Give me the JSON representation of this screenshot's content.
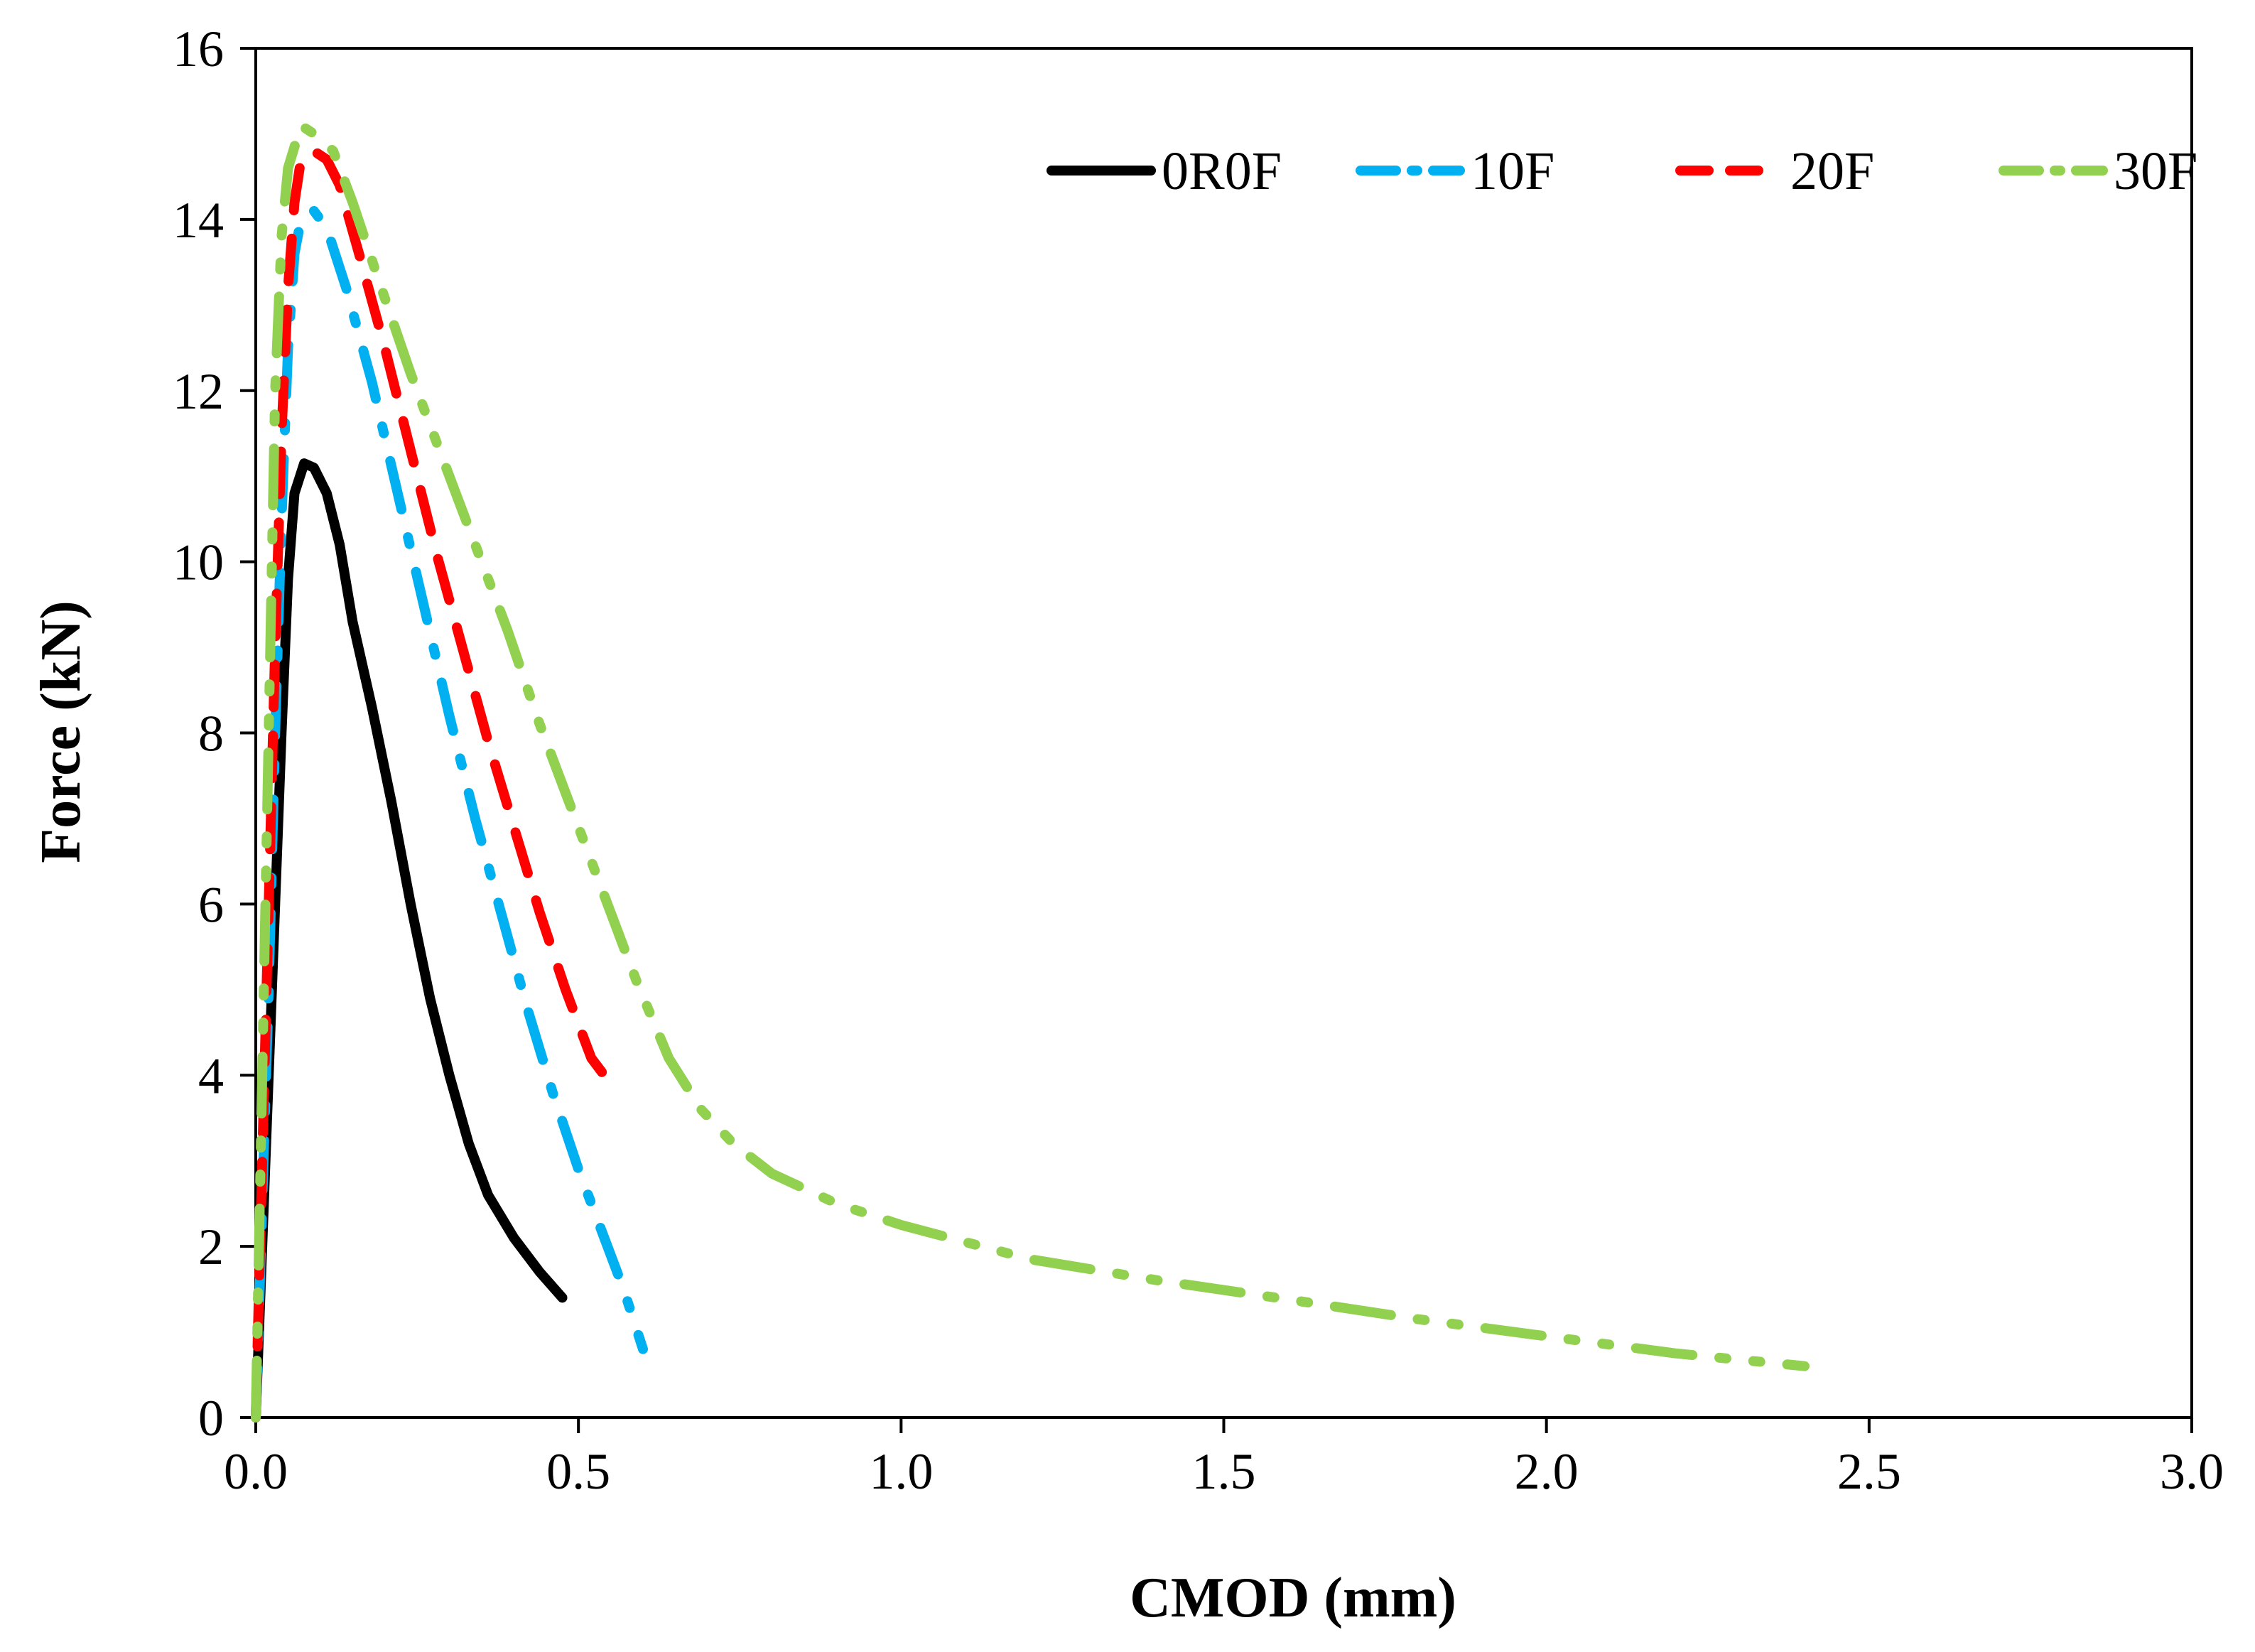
{
  "chart_data": {
    "type": "line",
    "xlabel": "CMOD (mm)",
    "ylabel": "Force (kN)",
    "xlim": [
      0,
      3
    ],
    "ylim": [
      0,
      16
    ],
    "x_ticks": [
      "0.0",
      "0.5",
      "1.0",
      "1.5",
      "2.0",
      "2.5",
      "3.0"
    ],
    "y_ticks": [
      "0",
      "2",
      "4",
      "6",
      "8",
      "10",
      "12",
      "14",
      "16"
    ],
    "legend_position": "top-right",
    "series": [
      {
        "name": "0R0F",
        "color": "#000000",
        "style": "solid",
        "points": [
          [
            0,
            0
          ],
          [
            0.01,
            2
          ],
          [
            0.02,
            4
          ],
          [
            0.03,
            6
          ],
          [
            0.04,
            8
          ],
          [
            0.05,
            9.8
          ],
          [
            0.06,
            10.8
          ],
          [
            0.075,
            11.15
          ],
          [
            0.09,
            11.1
          ],
          [
            0.11,
            10.8
          ],
          [
            0.13,
            10.2
          ],
          [
            0.15,
            9.3
          ],
          [
            0.18,
            8.3
          ],
          [
            0.21,
            7.2
          ],
          [
            0.24,
            6.0
          ],
          [
            0.27,
            4.9
          ],
          [
            0.3,
            4.0
          ],
          [
            0.33,
            3.2
          ],
          [
            0.36,
            2.6
          ],
          [
            0.4,
            2.1
          ],
          [
            0.44,
            1.7
          ],
          [
            0.475,
            1.4
          ]
        ]
      },
      {
        "name": "10F",
        "color": "#00B0F0",
        "style": "dash-dot",
        "points": [
          [
            0,
            0
          ],
          [
            0.01,
            2.5
          ],
          [
            0.02,
            5
          ],
          [
            0.03,
            8
          ],
          [
            0.04,
            10.5
          ],
          [
            0.05,
            12.5
          ],
          [
            0.06,
            13.6
          ],
          [
            0.07,
            14.0
          ],
          [
            0.09,
            14.1
          ],
          [
            0.11,
            13.9
          ],
          [
            0.14,
            13.2
          ],
          [
            0.18,
            12.1
          ],
          [
            0.22,
            10.8
          ],
          [
            0.26,
            9.5
          ],
          [
            0.3,
            8.2
          ],
          [
            0.34,
            7.0
          ],
          [
            0.38,
            5.9
          ],
          [
            0.42,
            4.8
          ],
          [
            0.46,
            3.8
          ],
          [
            0.5,
            2.9
          ],
          [
            0.54,
            2.1
          ],
          [
            0.57,
            1.5
          ],
          [
            0.6,
            0.8
          ]
        ]
      },
      {
        "name": "20F",
        "color": "#FF0000",
        "style": "dashed",
        "points": [
          [
            0,
            0
          ],
          [
            0.01,
            3
          ],
          [
            0.02,
            6
          ],
          [
            0.03,
            9
          ],
          [
            0.04,
            11.5
          ],
          [
            0.05,
            13.2
          ],
          [
            0.06,
            14.2
          ],
          [
            0.07,
            14.7
          ],
          [
            0.09,
            14.8
          ],
          [
            0.11,
            14.7
          ],
          [
            0.13,
            14.4
          ],
          [
            0.16,
            13.6
          ],
          [
            0.2,
            12.5
          ],
          [
            0.24,
            11.3
          ],
          [
            0.28,
            10.1
          ],
          [
            0.32,
            9.0
          ],
          [
            0.36,
            7.9
          ],
          [
            0.4,
            6.9
          ],
          [
            0.44,
            5.9
          ],
          [
            0.48,
            5.0
          ],
          [
            0.52,
            4.2
          ],
          [
            0.56,
            3.8
          ]
        ]
      },
      {
        "name": "30F",
        "color": "#92D050",
        "style": "dash-dot-dot",
        "points": [
          [
            0,
            0
          ],
          [
            0.005,
            2
          ],
          [
            0.01,
            4
          ],
          [
            0.015,
            6
          ],
          [
            0.02,
            8
          ],
          [
            0.025,
            10
          ],
          [
            0.03,
            12
          ],
          [
            0.04,
            13.8
          ],
          [
            0.05,
            14.6
          ],
          [
            0.07,
            15.1
          ],
          [
            0.09,
            15.0
          ],
          [
            0.12,
            14.8
          ],
          [
            0.15,
            14.2
          ],
          [
            0.19,
            13.3
          ],
          [
            0.24,
            12.2
          ],
          [
            0.29,
            11.2
          ],
          [
            0.34,
            10.2
          ],
          [
            0.39,
            9.2
          ],
          [
            0.44,
            8.1
          ],
          [
            0.49,
            7.1
          ],
          [
            0.54,
            6.1
          ],
          [
            0.59,
            5.1
          ],
          [
            0.64,
            4.2
          ],
          [
            0.69,
            3.6
          ],
          [
            0.74,
            3.2
          ],
          [
            0.8,
            2.85
          ],
          [
            0.9,
            2.5
          ],
          [
            1.0,
            2.25
          ],
          [
            1.2,
            1.85
          ],
          [
            1.4,
            1.6
          ],
          [
            1.6,
            1.38
          ],
          [
            1.8,
            1.15
          ],
          [
            2.0,
            0.95
          ],
          [
            2.2,
            0.75
          ],
          [
            2.4,
            0.6
          ]
        ]
      }
    ]
  }
}
